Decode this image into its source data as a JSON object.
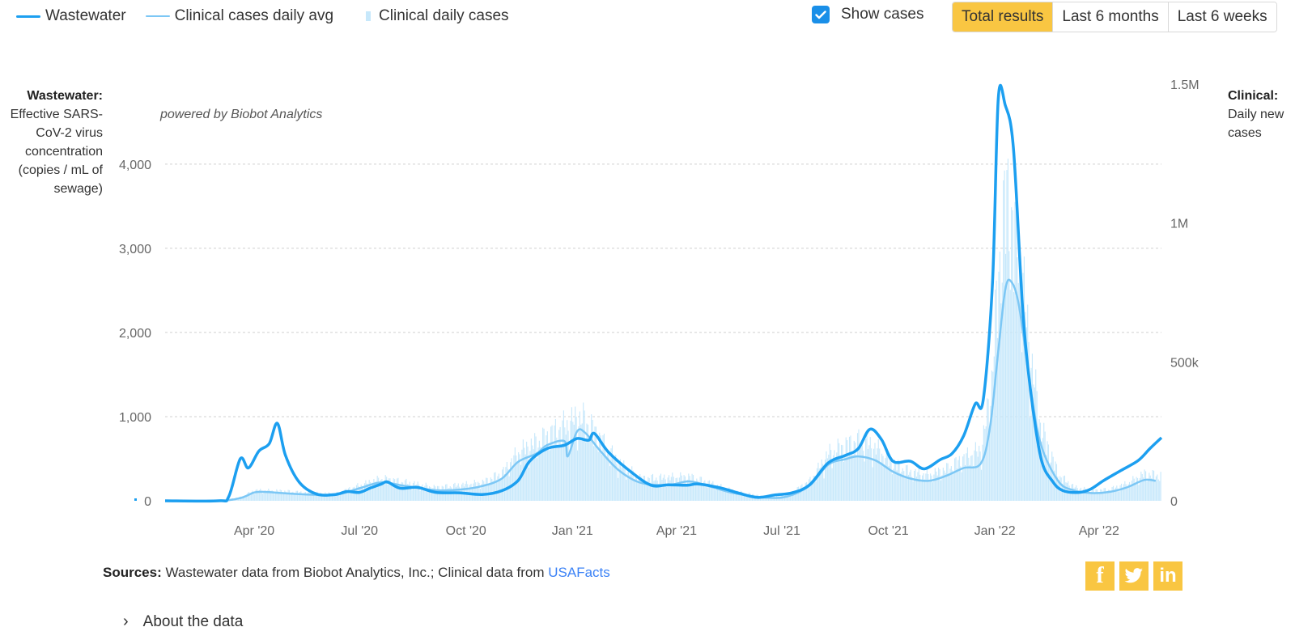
{
  "legend": {
    "wastewater": "Wastewater",
    "clinical_avg": "Clinical cases daily avg",
    "clinical_daily": "Clinical daily cases"
  },
  "controls": {
    "show_cases_label": "Show cases",
    "show_cases_checked": true,
    "ranges": [
      {
        "label": "Total results",
        "active": true
      },
      {
        "label": "Last 6 months",
        "active": false
      },
      {
        "label": "Last 6 weeks",
        "active": false
      }
    ]
  },
  "colors": {
    "wastewater": "#1c9ff0",
    "clinical_avg": "#7cc7f5",
    "clinical_bars": "#c7e8fb",
    "accent": "#f9c642",
    "checkbox": "#1a8fe8",
    "link": "#3b82f6"
  },
  "axis_titles": {
    "left_bold": "Wastewater:",
    "left_rest": "Effective SARS-CoV-2 virus concentration (copies / mL of sewage)",
    "right_bold": "Clinical:",
    "right_rest": "Daily new cases"
  },
  "chart_data": {
    "type": "line",
    "watermark": "powered by Biobot Analytics",
    "x_ticks": [
      "Apr '20",
      "Jul '20",
      "Oct '20",
      "Jan '21",
      "Apr '21",
      "Jul '21",
      "Oct '21",
      "Jan '22",
      "Apr '22"
    ],
    "x_range": [
      "2020-01-15",
      "2022-05-25"
    ],
    "y_left": {
      "label": "Wastewater",
      "ticks": [
        "0",
        "1,000",
        "2,000",
        "3,000",
        "4,000"
      ],
      "range": [
        0,
        4950
      ],
      "grid": true
    },
    "y_right": {
      "label": "Clinical",
      "ticks": [
        "0",
        "500k",
        "1M",
        "1.5M"
      ],
      "range": [
        0,
        1500000
      ]
    },
    "series": [
      {
        "name": "Wastewater",
        "axis": "left",
        "points": [
          [
            "2020-01-15",
            0
          ],
          [
            "2020-03-01",
            0
          ],
          [
            "2020-03-10",
            50
          ],
          [
            "2020-03-20",
            500
          ],
          [
            "2020-03-27",
            390
          ],
          [
            "2020-04-05",
            590
          ],
          [
            "2020-04-14",
            680
          ],
          [
            "2020-04-21",
            920
          ],
          [
            "2020-04-28",
            540
          ],
          [
            "2020-05-10",
            220
          ],
          [
            "2020-05-25",
            80
          ],
          [
            "2020-06-10",
            75
          ],
          [
            "2020-06-20",
            110
          ],
          [
            "2020-07-01",
            100
          ],
          [
            "2020-07-10",
            150
          ],
          [
            "2020-07-20",
            200
          ],
          [
            "2020-07-25",
            225
          ],
          [
            "2020-08-05",
            150
          ],
          [
            "2020-08-20",
            160
          ],
          [
            "2020-09-05",
            100
          ],
          [
            "2020-09-25",
            95
          ],
          [
            "2020-10-15",
            75
          ],
          [
            "2020-11-01",
            120
          ],
          [
            "2020-11-15",
            240
          ],
          [
            "2020-11-25",
            470
          ],
          [
            "2020-12-10",
            620
          ],
          [
            "2020-12-25",
            660
          ],
          [
            "2021-01-05",
            740
          ],
          [
            "2021-01-15",
            720
          ],
          [
            "2021-01-20",
            800
          ],
          [
            "2021-02-01",
            580
          ],
          [
            "2021-02-20",
            350
          ],
          [
            "2021-03-10",
            185
          ],
          [
            "2021-03-25",
            190
          ],
          [
            "2021-04-10",
            185
          ],
          [
            "2021-04-20",
            200
          ],
          [
            "2021-05-10",
            150
          ],
          [
            "2021-05-25",
            90
          ],
          [
            "2021-06-10",
            40
          ],
          [
            "2021-06-25",
            70
          ],
          [
            "2021-07-10",
            95
          ],
          [
            "2021-07-25",
            190
          ],
          [
            "2021-08-10",
            450
          ],
          [
            "2021-08-25",
            540
          ],
          [
            "2021-09-05",
            620
          ],
          [
            "2021-09-15",
            850
          ],
          [
            "2021-09-25",
            730
          ],
          [
            "2021-10-05",
            470
          ],
          [
            "2021-10-20",
            470
          ],
          [
            "2021-11-01",
            380
          ],
          [
            "2021-11-15",
            490
          ],
          [
            "2021-11-25",
            560
          ],
          [
            "2021-12-05",
            770
          ],
          [
            "2021-12-15",
            1150
          ],
          [
            "2021-12-22",
            1200
          ],
          [
            "2021-12-30",
            2600
          ],
          [
            "2022-01-04",
            4780
          ],
          [
            "2022-01-10",
            4700
          ],
          [
            "2022-01-17",
            4200
          ],
          [
            "2022-01-25",
            2300
          ],
          [
            "2022-02-01",
            1300
          ],
          [
            "2022-02-10",
            500
          ],
          [
            "2022-02-20",
            230
          ],
          [
            "2022-03-01",
            120
          ],
          [
            "2022-03-15",
            100
          ],
          [
            "2022-03-25",
            140
          ],
          [
            "2022-04-05",
            240
          ],
          [
            "2022-04-20",
            360
          ],
          [
            "2022-05-05",
            480
          ],
          [
            "2022-05-15",
            620
          ],
          [
            "2022-05-25",
            750
          ]
        ]
      },
      {
        "name": "Clinical cases daily avg",
        "axis": "right",
        "points": [
          [
            "2020-01-15",
            0
          ],
          [
            "2020-03-01",
            0
          ],
          [
            "2020-03-20",
            10000
          ],
          [
            "2020-04-01",
            30000
          ],
          [
            "2020-04-10",
            32000
          ],
          [
            "2020-04-25",
            28000
          ],
          [
            "2020-05-20",
            22000
          ],
          [
            "2020-06-10",
            21000
          ],
          [
            "2020-07-01",
            45000
          ],
          [
            "2020-07-20",
            66000
          ],
          [
            "2020-08-10",
            53000
          ],
          [
            "2020-09-05",
            38000
          ],
          [
            "2020-09-25",
            40000
          ],
          [
            "2020-10-15",
            53000
          ],
          [
            "2020-11-01",
            80000
          ],
          [
            "2020-11-15",
            140000
          ],
          [
            "2020-12-01",
            170000
          ],
          [
            "2020-12-10",
            200000
          ],
          [
            "2020-12-25",
            215000
          ],
          [
            "2020-12-28",
            160000
          ],
          [
            "2021-01-05",
            250000
          ],
          [
            "2021-01-12",
            245000
          ],
          [
            "2021-01-25",
            180000
          ],
          [
            "2021-02-10",
            110000
          ],
          [
            "2021-03-01",
            65000
          ],
          [
            "2021-03-25",
            57000
          ],
          [
            "2021-04-12",
            70000
          ],
          [
            "2021-05-01",
            50000
          ],
          [
            "2021-05-20",
            28000
          ],
          [
            "2021-06-15",
            12000
          ],
          [
            "2021-07-05",
            15000
          ],
          [
            "2021-07-25",
            55000
          ],
          [
            "2021-08-10",
            130000
          ],
          [
            "2021-08-25",
            150000
          ],
          [
            "2021-09-05",
            160000
          ],
          [
            "2021-09-20",
            145000
          ],
          [
            "2021-10-05",
            105000
          ],
          [
            "2021-10-20",
            80000
          ],
          [
            "2021-11-05",
            72000
          ],
          [
            "2021-11-20",
            90000
          ],
          [
            "2021-12-05",
            118000
          ],
          [
            "2021-12-20",
            135000
          ],
          [
            "2021-12-28",
            270000
          ],
          [
            "2022-01-04",
            540000
          ],
          [
            "2022-01-10",
            760000
          ],
          [
            "2022-01-15",
            790000
          ],
          [
            "2022-01-22",
            700000
          ],
          [
            "2022-02-01",
            400000
          ],
          [
            "2022-02-10",
            200000
          ],
          [
            "2022-02-25",
            70000
          ],
          [
            "2022-03-10",
            38000
          ],
          [
            "2022-03-25",
            28000
          ],
          [
            "2022-04-10",
            32000
          ],
          [
            "2022-04-25",
            48000
          ],
          [
            "2022-05-10",
            75000
          ],
          [
            "2022-05-20",
            72000
          ]
        ]
      },
      {
        "name": "Clinical daily cases",
        "axis": "right",
        "type": "bar",
        "envelope": [
          [
            "2020-01-15",
            0
          ],
          [
            "2020-03-01",
            0
          ],
          [
            "2020-03-20",
            13000
          ],
          [
            "2020-04-01",
            36000
          ],
          [
            "2020-04-25",
            34000
          ],
          [
            "2020-05-20",
            27000
          ],
          [
            "2020-06-10",
            25000
          ],
          [
            "2020-07-01",
            54000
          ],
          [
            "2020-07-20",
            78000
          ],
          [
            "2020-08-10",
            64000
          ],
          [
            "2020-09-05",
            46000
          ],
          [
            "2020-10-15",
            64000
          ],
          [
            "2020-11-01",
            98000
          ],
          [
            "2020-11-15",
            170000
          ],
          [
            "2020-12-01",
            205000
          ],
          [
            "2020-12-15",
            240000
          ],
          [
            "2021-01-05",
            290000
          ],
          [
            "2021-01-12",
            285000
          ],
          [
            "2021-01-25",
            215000
          ],
          [
            "2021-02-10",
            130000
          ],
          [
            "2021-03-01",
            78000
          ],
          [
            "2021-04-12",
            84000
          ],
          [
            "2021-05-01",
            60000
          ],
          [
            "2021-05-20",
            34000
          ],
          [
            "2021-06-15",
            15000
          ],
          [
            "2021-07-05",
            18000
          ],
          [
            "2021-07-25",
            70000
          ],
          [
            "2021-08-10",
            165000
          ],
          [
            "2021-08-25",
            195000
          ],
          [
            "2021-09-05",
            210000
          ],
          [
            "2021-09-20",
            185000
          ],
          [
            "2021-10-05",
            132000
          ],
          [
            "2021-10-20",
            100000
          ],
          [
            "2021-11-05",
            90000
          ],
          [
            "2021-11-20",
            112000
          ],
          [
            "2021-12-05",
            150000
          ],
          [
            "2021-12-20",
            180000
          ],
          [
            "2021-12-28",
            380000
          ],
          [
            "2022-01-04",
            800000
          ],
          [
            "2022-01-10",
            1080000
          ],
          [
            "2022-01-15",
            1000000
          ],
          [
            "2022-01-22",
            870000
          ],
          [
            "2022-02-01",
            490000
          ],
          [
            "2022-02-10",
            250000
          ],
          [
            "2022-02-25",
            90000
          ],
          [
            "2022-03-10",
            48000
          ],
          [
            "2022-03-25",
            35000
          ],
          [
            "2022-04-10",
            40000
          ],
          [
            "2022-04-25",
            60000
          ],
          [
            "2022-05-10",
            95000
          ],
          [
            "2022-05-20",
            90000
          ]
        ]
      }
    ]
  },
  "sources": {
    "label": "Sources:",
    "text": "Wastewater data from Biobot Analytics, Inc.; Clinical data from",
    "link": "USAFacts"
  },
  "social": {
    "facebook": "f",
    "twitter": "twitter-icon",
    "linkedin": "in"
  },
  "about": {
    "label": "About the data",
    "icon": "chevron-right-icon"
  }
}
